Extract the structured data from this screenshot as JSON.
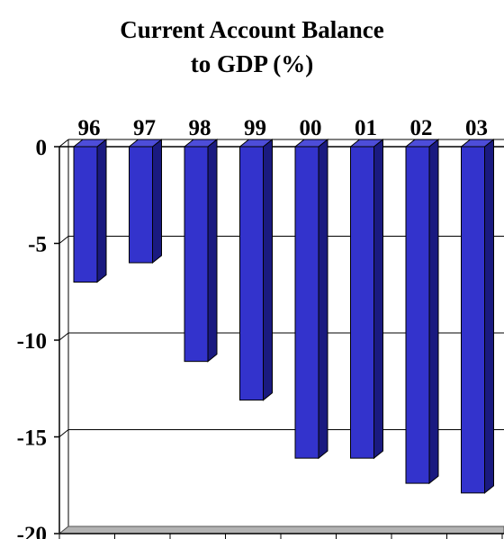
{
  "title_lines": [
    "Current Account Balance",
    "to GDP (%)"
  ],
  "colors": {
    "bar_front": "#3333cc",
    "bar_side": "#1a1a80",
    "bar_top": "#4d4dd9",
    "floor": "#b3b3b3",
    "grid": "#000000"
  },
  "chart_data": {
    "type": "bar",
    "title": "Current Account Balance to GDP (%)",
    "categories": [
      "96",
      "97",
      "98",
      "99",
      "00",
      "01",
      "02",
      "03"
    ],
    "values": [
      -7.0,
      -6.0,
      -11.1,
      -13.1,
      -16.1,
      -16.1,
      -17.4,
      -17.9
    ],
    "ylim": [
      -20,
      0
    ],
    "yticks": [
      0,
      -5,
      -10,
      -15,
      -20
    ],
    "category_axis_position": "top",
    "grid": true,
    "style": "3d"
  }
}
